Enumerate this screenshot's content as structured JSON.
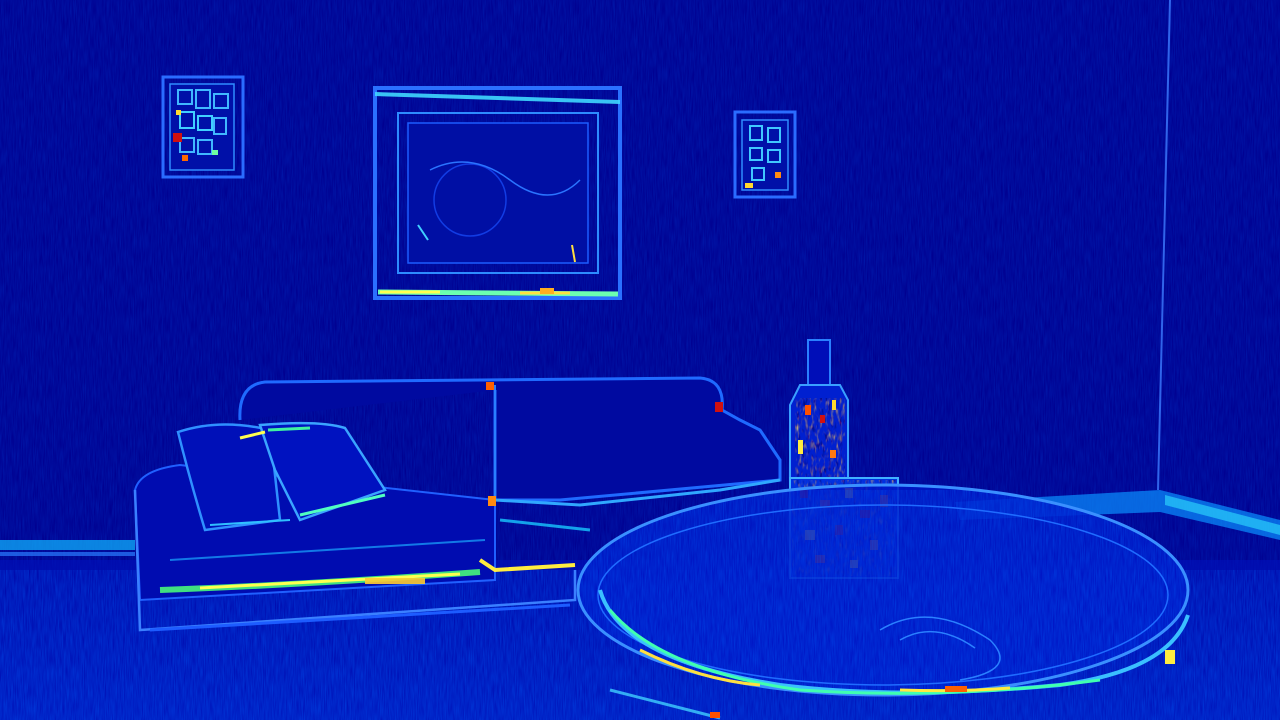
{
  "image": {
    "kind": "false-color edge / gradient-magnitude heatmap of an interior room",
    "colormap": [
      "#00007a",
      "#0000c8",
      "#0040ff",
      "#00c8ff",
      "#ffff40",
      "#ff6000",
      "#c00000"
    ],
    "background_color": "#000088"
  },
  "objects": [
    "wall-frame-small-left",
    "wall-frame-large-center",
    "wall-frame-small-right",
    "sofa",
    "throw-pillows",
    "round-coffee-table",
    "bottle",
    "glass-jar",
    "floor-baseboard",
    "wall-corner-edge"
  ]
}
